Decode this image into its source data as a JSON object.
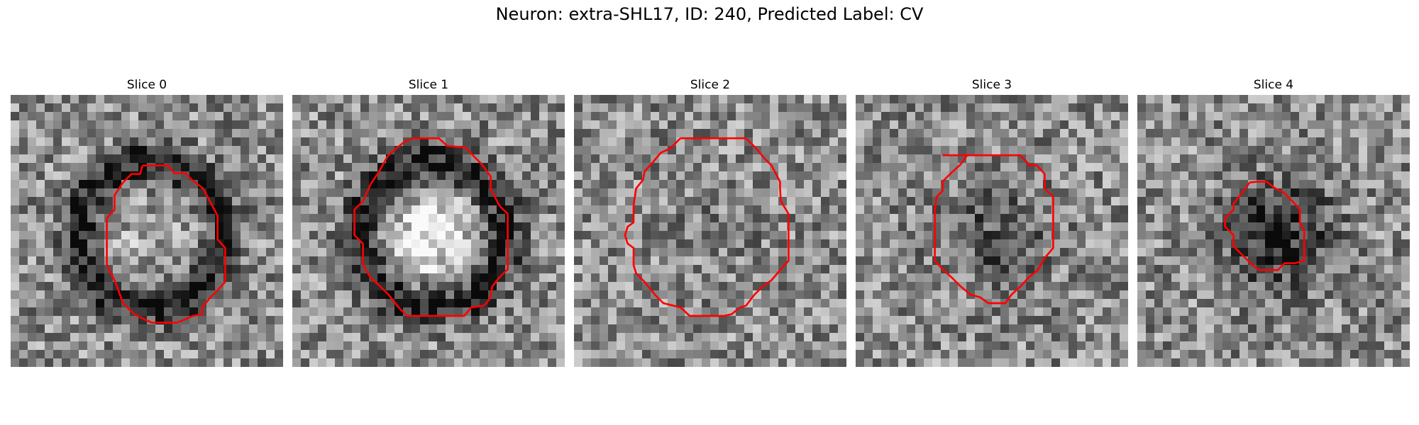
{
  "suptitle": "Neuron: extra-SHL17, ID: 240, Predicted Label: CV",
  "colors": {
    "contour": "#ff0000",
    "background": "#ffffff",
    "colormap": "gray"
  },
  "slices": [
    {
      "title": "Slice 0",
      "seed": 11,
      "dark_ring": true,
      "center_bright": 0.55
    },
    {
      "title": "Slice 1",
      "seed": 23,
      "dark_ring": true,
      "center_bright": 0.85
    },
    {
      "title": "Slice 2",
      "seed": 37,
      "dark_ring": false,
      "center_bright": 0.55
    },
    {
      "title": "Slice 3",
      "seed": 49,
      "dark_ring": false,
      "center_bright": 0.35
    },
    {
      "title": "Slice 4",
      "seed": 61,
      "dark_ring": false,
      "center_bright": 0.15
    }
  ]
}
